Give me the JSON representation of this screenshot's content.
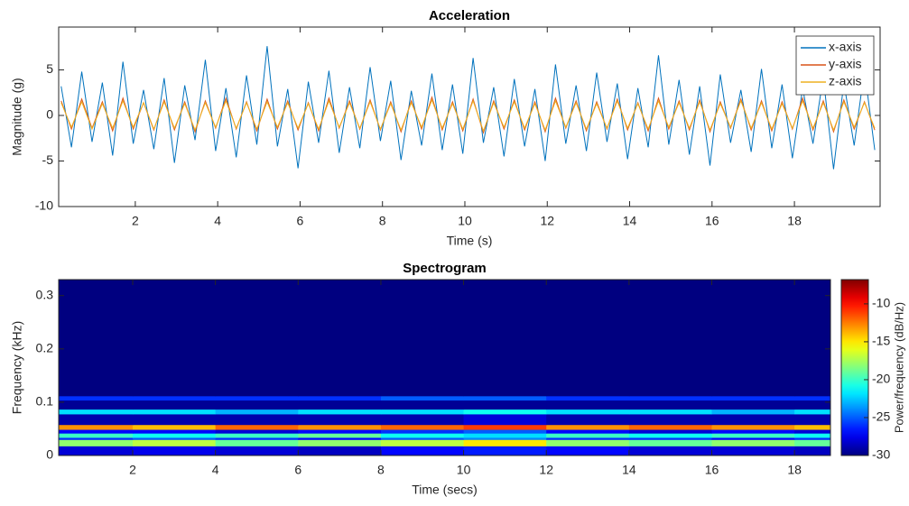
{
  "chart_data": [
    {
      "type": "line",
      "title": "Acceleration",
      "xlabel": "Time (s)",
      "ylabel": "Magnitude (g)",
      "x": [
        0.2,
        0.45,
        0.7,
        0.95,
        1.2,
        1.45,
        1.7,
        1.95,
        2.2,
        2.45,
        2.7,
        2.95,
        3.2,
        3.45,
        3.7,
        3.95,
        4.2,
        4.45,
        4.7,
        4.95,
        5.2,
        5.45,
        5.7,
        5.95,
        6.2,
        6.45,
        6.7,
        6.95,
        7.2,
        7.45,
        7.7,
        7.95,
        8.2,
        8.45,
        8.7,
        8.95,
        9.2,
        9.45,
        9.7,
        9.95,
        10.2,
        10.45,
        10.7,
        10.95,
        11.2,
        11.45,
        11.7,
        11.95,
        12.2,
        12.45,
        12.7,
        12.95,
        13.2,
        13.45,
        13.7,
        13.95,
        14.2,
        14.45,
        14.7,
        14.95,
        15.2,
        15.45,
        15.7,
        15.95,
        16.2,
        16.45,
        16.7,
        16.95,
        17.2,
        17.45,
        17.7,
        17.95,
        18.2,
        18.45,
        18.7,
        18.95,
        19.2,
        19.45,
        19.7,
        19.95
      ],
      "series": [
        {
          "name": "x-axis",
          "color": "#0072bd",
          "values": [
            3.2,
            -3.5,
            4.8,
            -2.9,
            3.6,
            -4.4,
            5.9,
            -3.1,
            2.8,
            -3.7,
            4.1,
            -5.2,
            3.3,
            -2.7,
            6.1,
            -3.9,
            3.0,
            -4.6,
            4.4,
            -3.2,
            7.6,
            -3.4,
            2.9,
            -5.8,
            3.7,
            -3.0,
            4.9,
            -4.1,
            3.1,
            -3.6,
            5.3,
            -2.8,
            3.8,
            -4.9,
            2.7,
            -3.3,
            4.6,
            -3.8,
            3.4,
            -4.2,
            6.3,
            -3.0,
            3.1,
            -4.5,
            4.0,
            -3.4,
            2.9,
            -5.0,
            5.6,
            -3.1,
            3.3,
            -3.9,
            4.7,
            -2.9,
            3.5,
            -4.8,
            3.0,
            -3.5,
            6.6,
            -3.2,
            3.9,
            -4.3,
            3.2,
            -5.5,
            4.5,
            -3.0,
            2.8,
            -4.0,
            5.1,
            -3.6,
            3.4,
            -4.7,
            3.0,
            -3.1,
            4.2,
            -5.9,
            3.6,
            -3.3,
            5.0,
            -3.8
          ]
        },
        {
          "name": "y-axis",
          "color": "#d95319",
          "values": [
            1.6,
            -1.5,
            1.8,
            -1.4,
            1.5,
            -1.7,
            1.9,
            -1.5,
            1.4,
            -1.6,
            1.7,
            -1.6,
            1.5,
            -1.8,
            1.6,
            -1.4,
            1.9,
            -1.5,
            1.5,
            -1.7,
            1.8,
            -1.5,
            1.6,
            -1.6,
            1.4,
            -1.7,
            1.9,
            -1.4,
            1.6,
            -1.5,
            1.7,
            -1.6,
            1.5,
            -1.8,
            1.6,
            -1.5,
            2.0,
            -1.6,
            1.5,
            -1.7,
            1.8,
            -1.9,
            1.6,
            -1.5,
            1.7,
            -1.6,
            1.5,
            -1.8,
            1.9,
            -1.4,
            1.6,
            -1.7,
            1.5,
            -1.5,
            1.8,
            -1.6,
            1.4,
            -1.7,
            1.9,
            -1.5,
            1.6,
            -1.6,
            1.7,
            -1.8,
            1.5,
            -1.4,
            1.8,
            -1.6,
            1.6,
            -1.7,
            1.5,
            -1.5,
            1.9,
            -1.6,
            1.6,
            -1.8,
            1.7,
            -1.5,
            1.5,
            -1.6
          ]
        },
        {
          "name": "z-axis",
          "color": "#edb120",
          "values": [
            1.4,
            -1.3,
            1.5,
            -1.5,
            1.3,
            -1.4,
            1.6,
            -1.3,
            1.4,
            -1.5,
            1.5,
            -1.4,
            1.3,
            -1.6,
            1.4,
            -1.3,
            1.6,
            -1.4,
            1.4,
            -1.5,
            1.5,
            -1.3,
            1.4,
            -1.4,
            1.3,
            -1.5,
            1.6,
            -1.3,
            1.4,
            -1.4,
            1.5,
            -1.5,
            1.3,
            -1.6,
            1.4,
            -1.3,
            1.7,
            -1.4,
            1.3,
            -1.5,
            1.6,
            -1.7,
            1.4,
            -1.3,
            1.5,
            -1.4,
            1.3,
            -1.6,
            1.6,
            -1.3,
            1.4,
            -1.5,
            1.3,
            -1.4,
            1.6,
            -1.4,
            1.3,
            -1.5,
            1.6,
            -1.3,
            1.4,
            -1.4,
            1.5,
            -1.6,
            1.3,
            -1.3,
            1.6,
            -1.4,
            1.4,
            -1.5,
            1.3,
            -1.4,
            1.6,
            -1.4,
            1.4,
            -1.6,
            1.5,
            -1.3,
            1.4,
            -1.4
          ]
        }
      ],
      "xlim": [
        0.14,
        20.08
      ],
      "ylim": [
        -10,
        9.7
      ],
      "xticks": [
        2,
        4,
        6,
        8,
        10,
        12,
        14,
        16,
        18
      ],
      "yticks": [
        -10,
        -5,
        0,
        5
      ],
      "legend": "upper right"
    },
    {
      "type": "heatmap",
      "title": "Spectrogram",
      "xlabel": "Time (secs)",
      "ylabel": "Frequency (kHz)",
      "x_edges": [
        0.21,
        2,
        4,
        6,
        8,
        10,
        12,
        14,
        16,
        18,
        18.87
      ],
      "y_edges": [
        0,
        0.018,
        0.03,
        0.034,
        0.042,
        0.049,
        0.058,
        0.078,
        0.087,
        0.104,
        0.112,
        0.33
      ],
      "z": [
        [
          -28,
          -27.5,
          -28,
          -28.5,
          -27,
          -26.5,
          -27,
          -28,
          -28,
          -28.5
        ],
        [
          -18,
          -17,
          -19,
          -18,
          -17,
          -15,
          -18,
          -19,
          -18,
          -19
        ],
        [
          -26,
          -25,
          -26,
          -27,
          -25,
          -24,
          -26,
          -26,
          -27,
          -26
        ],
        [
          -20,
          -21,
          -20,
          -19,
          -21,
          -22,
          -20,
          -21,
          -20,
          -21
        ],
        [
          -27,
          -27,
          -28,
          -27,
          -26,
          -25,
          -27,
          -28,
          -27,
          -28
        ],
        [
          -13,
          -14,
          -12,
          -13,
          -12,
          -11,
          -13,
          -12,
          -13,
          -14
        ],
        [
          -29,
          -29,
          -29,
          -29,
          -29,
          -28,
          -29,
          -29,
          -29,
          -29
        ],
        [
          -22,
          -22,
          -23,
          -22,
          -22,
          -21,
          -22,
          -22,
          -23,
          -22
        ],
        [
          -29.5,
          -29.5,
          -29.5,
          -29.5,
          -29.5,
          -29.5,
          -29.5,
          -29.5,
          -29.5,
          -29.5
        ],
        [
          -26,
          -26,
          -26,
          -26,
          -25,
          -25,
          -26,
          -26,
          -26,
          -26
        ],
        [
          -30,
          -30,
          -30,
          -30,
          -30,
          -30,
          -30,
          -30,
          -30,
          -30
        ]
      ],
      "xlim": [
        0.21,
        18.87
      ],
      "ylim": [
        0,
        0.33
      ],
      "xticks": [
        2,
        4,
        6,
        8,
        10,
        12,
        14,
        16,
        18
      ],
      "yticks": [
        0,
        0.1,
        0.2,
        0.3
      ],
      "colormap": "jet",
      "colorbar": {
        "label": "Power/frequency (dB/Hz)",
        "clim": [
          -30,
          -6.8
        ],
        "ticks": [
          -30,
          -25,
          -20,
          -15,
          -10
        ]
      }
    }
  ]
}
